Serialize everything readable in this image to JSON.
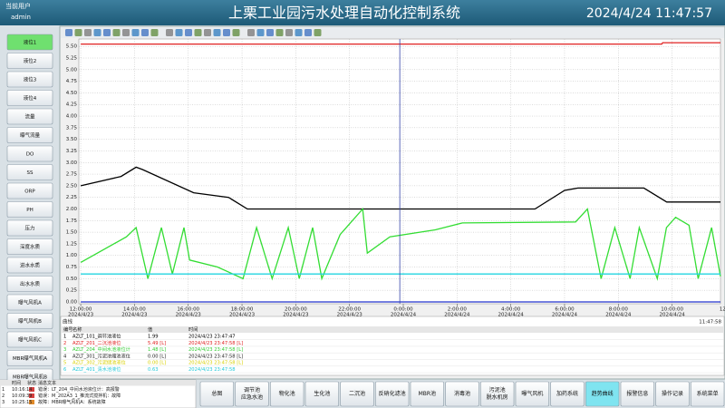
{
  "header": {
    "user_label": "当前用户",
    "user": "admin",
    "title": "上栗工业园污水处理自动化控制系统",
    "datetime": "2024/4/24 11:47:57"
  },
  "sidebar": {
    "active": 0,
    "buttons": [
      "液位1",
      "液位2",
      "液位3",
      "液位4",
      "流量",
      "曝气流量",
      "DO",
      "SS",
      "ORP",
      "PH",
      "压力",
      "深度水质",
      "进水水质",
      "出水水质",
      "曝气风机A",
      "曝气风机B",
      "曝气风机C",
      "MBR曝气风机A",
      "MBR曝气风机B"
    ]
  },
  "chart_data": {
    "type": "line",
    "xlim": [
      -0.07,
      23.8
    ],
    "ylim": [
      -0.04,
      5.66
    ],
    "grid": true,
    "cursor_x": 11.87,
    "yticks": [
      {
        "value": 0,
        "label": "0.00"
      },
      {
        "value": 0.25,
        "label": "0.25"
      },
      {
        "value": 0.5,
        "label": "0.50"
      },
      {
        "value": 0.75,
        "label": "0.75"
      },
      {
        "value": 1,
        "label": "1.00"
      },
      {
        "value": 1.25,
        "label": "1.25"
      },
      {
        "value": 1.5,
        "label": "1.50"
      },
      {
        "value": 1.75,
        "label": "1.75"
      },
      {
        "value": 2,
        "label": "2.00"
      },
      {
        "value": 2.25,
        "label": "2.25"
      },
      {
        "value": 2.5,
        "label": "2.50"
      },
      {
        "value": 2.75,
        "label": "2.75"
      },
      {
        "value": 3,
        "label": "3.00"
      },
      {
        "value": 3.25,
        "label": "3.25"
      },
      {
        "value": 3.5,
        "label": "3.50"
      },
      {
        "value": 3.75,
        "label": "3.75"
      },
      {
        "value": 4,
        "label": "4.00"
      },
      {
        "value": 4.25,
        "label": "4.25"
      },
      {
        "value": 4.5,
        "label": "4.50"
      },
      {
        "value": 4.75,
        "label": "4.75"
      },
      {
        "value": 5,
        "label": "5.00"
      },
      {
        "value": 5.25,
        "label": "5.25"
      },
      {
        "value": 5.5,
        "label": "5.50"
      }
    ],
    "xticks": [
      {
        "value": 0,
        "label": "12:00:00",
        "date": "2024/4/23"
      },
      {
        "value": 2,
        "label": "14:00:00",
        "date": "2024/4/23"
      },
      {
        "value": 4,
        "label": "16:00:00",
        "date": "2024/4/23"
      },
      {
        "value": 6,
        "label": "18:00:00",
        "date": "2024/4/23"
      },
      {
        "value": 8,
        "label": "20:00:00",
        "date": "2024/4/23"
      },
      {
        "value": 10,
        "label": "22:00:00",
        "date": "2024/4/23"
      },
      {
        "value": 12,
        "label": "0:00:00",
        "date": "2024/4/24"
      },
      {
        "value": 14,
        "label": "2:00:00",
        "date": "2024/4/24"
      },
      {
        "value": 16,
        "label": "4:00:00",
        "date": "2024/4/24"
      },
      {
        "value": 18,
        "label": "6:00:00",
        "date": "2024/4/24"
      },
      {
        "value": 20,
        "label": "8:00:00",
        "date": "2024/4/24"
      },
      {
        "value": 22,
        "label": "10:00:00",
        "date": "2024/4/24"
      },
      {
        "value": 24,
        "label": "12"
      }
    ],
    "series": [
      {
        "color": "#e02020",
        "x": [
          0,
          21.62,
          21.65,
          23.8
        ],
        "values": [
          5.55,
          5.55,
          5.58,
          5.58
        ]
      },
      {
        "color": "#000000",
        "x": [
          0,
          1.5,
          2.06,
          2.3,
          4.2,
          5.5,
          6.2,
          16.9,
          18.0,
          18.5,
          20.95,
          21.8,
          23.8
        ],
        "values": [
          2.5,
          2.7,
          2.9,
          2.85,
          2.35,
          2.25,
          2.0,
          2.0,
          2.4,
          2.45,
          2.45,
          2.15,
          2.15
        ]
      },
      {
        "color": "#33dd33",
        "x": [
          0,
          1.7,
          2.06,
          2.5,
          3.0,
          3.41,
          3.84,
          4.05,
          5.09,
          6.04,
          6.54,
          7.12,
          7.72,
          8.13,
          8.63,
          8.97,
          9.65,
          10.49,
          10.66,
          11.5,
          13.19,
          14.2,
          18.41,
          18.85,
          19.36,
          19.87,
          20.44,
          20.78,
          21.45,
          21.79,
          22.13,
          22.63,
          22.97,
          23.47,
          23.8
        ],
        "values": [
          0.85,
          1.4,
          1.6,
          0.5,
          1.6,
          0.6,
          1.6,
          0.9,
          0.75,
          0.5,
          1.6,
          0.5,
          1.6,
          0.5,
          1.6,
          0.5,
          1.45,
          2.0,
          1.05,
          1.4,
          1.55,
          1.7,
          1.72,
          2.0,
          0.5,
          1.6,
          0.5,
          1.6,
          0.5,
          1.6,
          1.82,
          1.65,
          0.5,
          1.6,
          0.55
        ]
      },
      {
        "color": "#22d4e0",
        "x": [
          0,
          23.8
        ],
        "values": [
          0.6,
          0.6
        ]
      },
      {
        "color": "#2233cc",
        "x": [
          0,
          23.8
        ],
        "values": [
          0,
          0
        ]
      }
    ]
  },
  "legend_table": {
    "title": "曲线",
    "time": "11:47:58",
    "columns": [
      "编号",
      "名称",
      "值",
      "时间"
    ],
    "rows": [
      [
        "1",
        "AZLT_101_调节池液位",
        "1.99",
        "2024/4/23 23:47:47"
      ],
      [
        "2",
        "AZLT_201_二沉池液位",
        "5.49 [L]",
        "2024/4/23 23:47:58 [L]"
      ],
      [
        "3",
        "AZLT_204_中间水池液位计",
        "1.48 [L]",
        "2024/4/23 23:47:58 [L]"
      ],
      [
        "4",
        "AZLT_301_污泥浓缩池液位",
        "0.00 [L]",
        "2024/4/23 23:47:58 [L]"
      ],
      [
        "5",
        "AZLT_302_污泥储池液位",
        "0.00 [L]",
        "2024/4/23 23:47:58 [L]"
      ],
      [
        "6",
        "AZLT_401_清水池液位",
        "0.63",
        "2024/4/23 23:47:58"
      ]
    ],
    "colors": [
      "#000000",
      "#e02020",
      "#33cc33",
      "#222222",
      "#d8d000",
      "#22c8d8"
    ]
  },
  "alarm_table": {
    "columns": [
      "时间",
      "状态",
      "消息文本"
    ],
    "rows": [
      [
        "1",
        "10:16:14",
        "错误：LT_204_中间水池液位计：高报警"
      ],
      [
        "2",
        "10:09:39",
        "错误：M_202A3_1_推流式搅拌机：故障"
      ],
      [
        "3",
        "10:25:15",
        "故障：MBR曝气风机A：系统故障"
      ]
    ]
  },
  "nav": {
    "active": 11,
    "buttons": [
      [
        "总图"
      ],
      [
        "调节池",
        "应急水池"
      ],
      [
        "物化池"
      ],
      [
        "生化池"
      ],
      [
        "二沉池"
      ],
      [
        "反硝化滤池"
      ],
      [
        "MBR池"
      ],
      [
        "消毒池"
      ],
      [
        "污泥池",
        "脱水机房"
      ],
      [
        "曝气风机"
      ],
      [
        "加药系统"
      ],
      [
        "趋势曲线"
      ],
      [
        "报警信息"
      ],
      [
        "操作记录"
      ],
      [
        "系统菜单"
      ]
    ]
  }
}
